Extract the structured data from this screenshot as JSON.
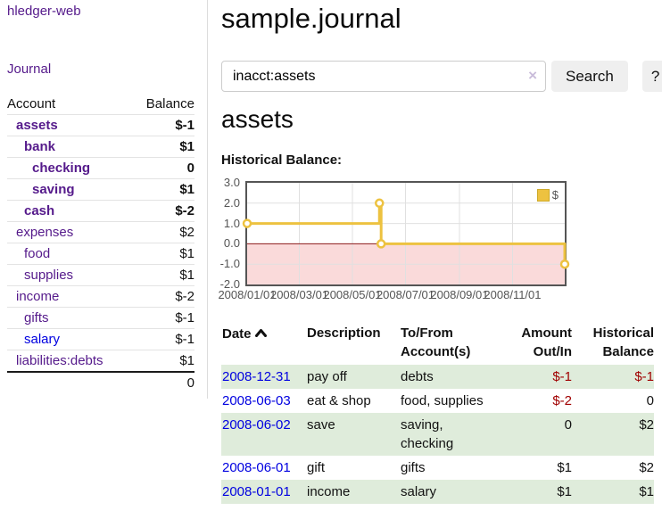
{
  "app_title": "hledger-web",
  "sidebar": {
    "journal_link": "Journal",
    "account_col": "Account",
    "balance_col": "Balance",
    "accounts": [
      {
        "label": "assets",
        "indent": 0,
        "bold": true,
        "blue": false,
        "balance": "$-1",
        "neg": "strong"
      },
      {
        "label": "bank",
        "indent": 1,
        "bold": true,
        "blue": false,
        "balance": "$1",
        "neg": null
      },
      {
        "label": "checking",
        "indent": 2,
        "bold": true,
        "blue": false,
        "balance": "0",
        "neg": null
      },
      {
        "label": "saving",
        "indent": 2,
        "bold": true,
        "blue": false,
        "balance": "$1",
        "neg": null
      },
      {
        "label": "cash",
        "indent": 1,
        "bold": true,
        "blue": false,
        "balance": "$-2",
        "neg": "strong"
      },
      {
        "label": "expenses",
        "indent": 0,
        "bold": false,
        "blue": false,
        "balance": "$2",
        "neg": null
      },
      {
        "label": "food",
        "indent": 1,
        "bold": false,
        "blue": false,
        "balance": "$1",
        "neg": null
      },
      {
        "label": "supplies",
        "indent": 1,
        "bold": false,
        "blue": false,
        "balance": "$1",
        "neg": null
      },
      {
        "label": "income",
        "indent": 0,
        "bold": false,
        "blue": false,
        "balance": "$-2",
        "neg": "faded"
      },
      {
        "label": "gifts",
        "indent": 1,
        "bold": false,
        "blue": false,
        "balance": "$-1",
        "neg": "faded"
      },
      {
        "label": "salary",
        "indent": 1,
        "bold": false,
        "blue": true,
        "balance": "$-1",
        "neg": "faded"
      },
      {
        "label": "liabilities:debts",
        "indent": 0,
        "bold": false,
        "blue": false,
        "balance": "$1",
        "neg": null
      }
    ],
    "total": "0"
  },
  "main": {
    "title": "sample.journal",
    "search": {
      "value": "inacct:assets",
      "clear_icon": "×",
      "search_button": "Search",
      "help_button": "?"
    },
    "account_heading": "assets",
    "chart_heading": "Historical Balance:"
  },
  "chart_data": {
    "type": "line",
    "title": "Historical Balance",
    "series": [
      {
        "name": "$",
        "color": "#edc240",
        "steps": true,
        "points": [
          [
            "2008-01-01",
            1
          ],
          [
            "2008-06-01",
            2
          ],
          [
            "2008-06-03",
            0
          ],
          [
            "2008-12-31",
            -1
          ]
        ]
      }
    ],
    "x_range": [
      "2008-01-01",
      "2008-12-31"
    ],
    "ylim": [
      -2,
      3
    ],
    "yticks": [
      3.0,
      2.0,
      1.0,
      0.0,
      -1.0,
      -2.0
    ],
    "xticks": [
      {
        "d": "2008-01-01",
        "label": "2008/01/01"
      },
      {
        "d": "2008-03-01",
        "label": "2008/03/01"
      },
      {
        "d": "2008-05-01",
        "label": "2008/05/01"
      },
      {
        "d": "2008-07-01",
        "label": "2008/07/01"
      },
      {
        "d": "2008-09-01",
        "label": "2008/09/01"
      },
      {
        "d": "2008-11-01",
        "label": "2008/11/01"
      }
    ],
    "legend": {
      "label": "$",
      "position": "top-right"
    },
    "grid": true,
    "negative_region_color": "#fadada",
    "zero_line_color": "#8b1a1a",
    "grid_color": "#e0e0e0"
  },
  "register": {
    "headers": {
      "date": "Date",
      "description": "Description",
      "account": [
        "To/From",
        "Account(s)"
      ],
      "amount": [
        "Amount",
        "Out/In"
      ],
      "balance": [
        "Historical",
        "Balance"
      ]
    },
    "rows": [
      {
        "date": "2008-12-31",
        "description": "pay off",
        "accounts": "debts",
        "amount": "$-1",
        "amount_neg": true,
        "balance": "$-1",
        "balance_neg": true
      },
      {
        "date": "2008-06-03",
        "description": "eat & shop",
        "accounts": "food, supplies",
        "amount": "$-2",
        "amount_neg": true,
        "balance": "0",
        "balance_neg": false
      },
      {
        "date": "2008-06-02",
        "description": "save",
        "accounts": "saving, checking",
        "amount": "0",
        "amount_neg": false,
        "balance": "$2",
        "balance_neg": false
      },
      {
        "date": "2008-06-01",
        "description": "gift",
        "accounts": "gifts",
        "amount": "$1",
        "amount_neg": false,
        "balance": "$2",
        "balance_neg": false
      },
      {
        "date": "2008-01-01",
        "description": "income",
        "accounts": "salary",
        "amount": "$1",
        "amount_neg": false,
        "balance": "$1",
        "balance_neg": false
      }
    ]
  }
}
